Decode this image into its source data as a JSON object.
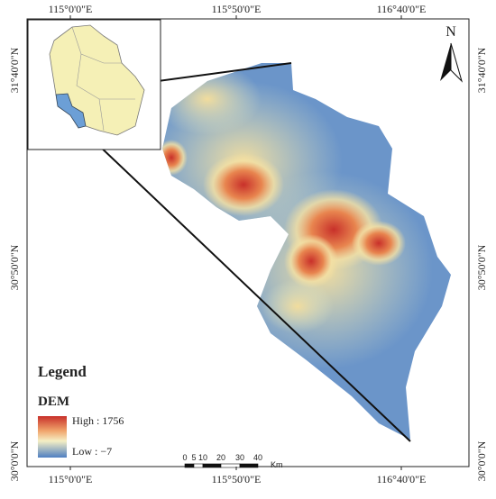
{
  "map": {
    "x_labels_top": [
      "115°0'0\"E",
      "115°50'0\"E",
      "116°40'0\"E"
    ],
    "x_labels_bottom": [
      "115°0'0\"E",
      "115°50'0\"E",
      "116°40'0\"E"
    ],
    "y_labels_left": [
      "31°40'0\"N",
      "30°50'0\"N",
      "30°0'0\"N"
    ],
    "y_labels_right": [
      "31°40'0\"N",
      "30°50'0\"N",
      "30°0'0\"N"
    ],
    "north": "N",
    "legend": {
      "title": "Legend",
      "layer": "DEM",
      "high": "High : 1756",
      "low": "Low : −7"
    },
    "scale_bar": {
      "ticks": [
        "0",
        "5",
        "10",
        "20",
        "30",
        "40"
      ],
      "unit": "Km"
    }
  }
}
